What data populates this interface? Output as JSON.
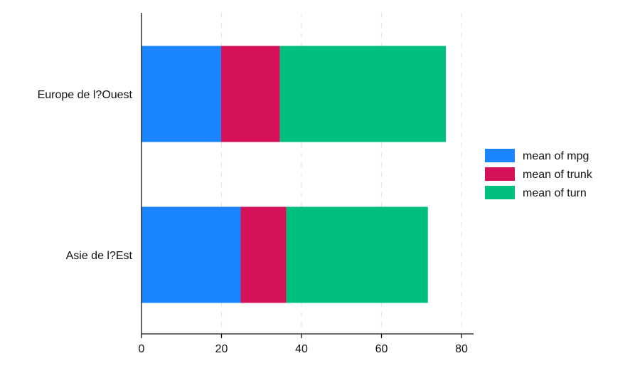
{
  "chart_data": {
    "type": "bar",
    "orientation": "horizontal",
    "stacked": true,
    "title": "",
    "xlabel": "",
    "ylabel": "",
    "categories": [
      "Europe de l?Ouest",
      "Asie de l?Est"
    ],
    "series": [
      {
        "name": "mean of mpg",
        "values": [
          19.9,
          24.8
        ],
        "color": "#1a85ff"
      },
      {
        "name": "mean of trunk",
        "values": [
          14.7,
          11.4
        ],
        "color": "#d41159"
      },
      {
        "name": "mean of turn",
        "values": [
          41.5,
          35.4
        ],
        "color": "#00bf7f"
      }
    ],
    "xlim": [
      0,
      83
    ],
    "xticks": [
      0,
      20,
      40,
      60,
      80
    ],
    "xtick_labels": [
      "0",
      "20",
      "40",
      "60",
      "80"
    ],
    "grid": true,
    "legend_position": "right"
  }
}
